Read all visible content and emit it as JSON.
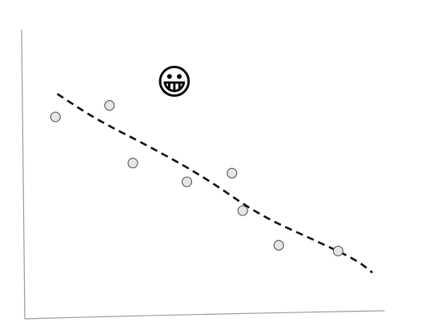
{
  "chart_data": {
    "type": "scatter",
    "title": "",
    "xlabel": "",
    "ylabel": "",
    "xlim": [
      0,
      10
    ],
    "ylim": [
      0,
      10
    ],
    "grid": false,
    "legend": "none",
    "points": [
      {
        "x": 0.85,
        "y": 7.0
      },
      {
        "x": 2.35,
        "y": 7.4
      },
      {
        "x": 3.0,
        "y": 5.4
      },
      {
        "x": 4.5,
        "y": 4.75
      },
      {
        "x": 5.75,
        "y": 5.05
      },
      {
        "x": 6.05,
        "y": 3.75
      },
      {
        "x": 7.05,
        "y": 2.55
      },
      {
        "x": 8.7,
        "y": 2.35
      }
    ],
    "trend": {
      "style": "dashed",
      "points": [
        {
          "x": 0.9,
          "y": 7.8
        },
        {
          "x": 2.0,
          "y": 6.9
        },
        {
          "x": 3.5,
          "y": 5.95
        },
        {
          "x": 5.0,
          "y": 4.9
        },
        {
          "x": 6.5,
          "y": 3.6
        },
        {
          "x": 8.0,
          "y": 2.75
        },
        {
          "x": 9.2,
          "y": 2.05
        },
        {
          "x": 9.65,
          "y": 1.6
        }
      ]
    },
    "marker_icon": {
      "name": "grinning-face-icon",
      "glyph": "😀",
      "x": 4.15,
      "y": 8.2
    },
    "colors": {
      "axis": "#9a9a9a",
      "point_fill": "#e6e6e6",
      "point_stroke": "#555555",
      "trend": "#111111"
    }
  }
}
